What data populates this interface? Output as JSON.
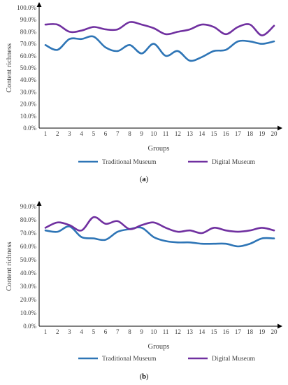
{
  "chart_data": [
    {
      "type": "line",
      "panel_label": "(a)",
      "ylabel": "Content richness",
      "xlabel": "Groups",
      "x": [
        1,
        2,
        3,
        4,
        5,
        6,
        7,
        8,
        9,
        10,
        11,
        12,
        13,
        14,
        15,
        16,
        17,
        18,
        19,
        20
      ],
      "yticks": [
        "0.0%",
        "10.0%",
        "20.0%",
        "30.0%",
        "40.0%",
        "50.0%",
        "60.0%",
        "70.0%",
        "80.0%",
        "90.0%",
        "100.0%"
      ],
      "ylim": [
        0,
        100
      ],
      "grid": false,
      "legend": "bottom",
      "series": [
        {
          "name": "Traditional Museum",
          "color": "#2E75B6",
          "values": [
            69,
            65,
            74,
            74,
            76,
            67,
            64,
            69,
            62,
            70,
            60,
            64,
            56,
            59,
            64,
            65,
            72,
            72,
            70,
            72
          ]
        },
        {
          "name": "Digital Museum",
          "color": "#7030A0",
          "values": [
            86,
            86,
            80,
            81,
            84,
            82,
            82,
            88,
            86,
            83,
            78,
            80,
            82,
            86,
            84,
            78,
            84,
            86,
            77,
            85
          ]
        }
      ]
    },
    {
      "type": "line",
      "panel_label": "(b)",
      "ylabel": "Content richness",
      "xlabel": "Groups",
      "x": [
        1,
        2,
        3,
        4,
        5,
        6,
        7,
        8,
        9,
        10,
        11,
        12,
        13,
        14,
        15,
        16,
        17,
        18,
        19,
        20
      ],
      "yticks": [
        "0.0%",
        "10.0%",
        "20.0%",
        "30.0%",
        "40.0%",
        "50.0%",
        "60.0%",
        "70.0%",
        "80.0%",
        "90.0%"
      ],
      "ylim": [
        0,
        90
      ],
      "grid": false,
      "legend": "bottom",
      "series": [
        {
          "name": "Traditional Museum",
          "color": "#2E75B6",
          "values": [
            72,
            71,
            75,
            67,
            66,
            65,
            71,
            73,
            74,
            67,
            64,
            63,
            63,
            62,
            62,
            62,
            60,
            62,
            66,
            66
          ]
        },
        {
          "name": "Digital Museum",
          "color": "#7030A0",
          "values": [
            74,
            78,
            76,
            72,
            82,
            77,
            79,
            73,
            76,
            78,
            74,
            71,
            72,
            70,
            74,
            72,
            71,
            72,
            74,
            72
          ]
        }
      ]
    }
  ]
}
